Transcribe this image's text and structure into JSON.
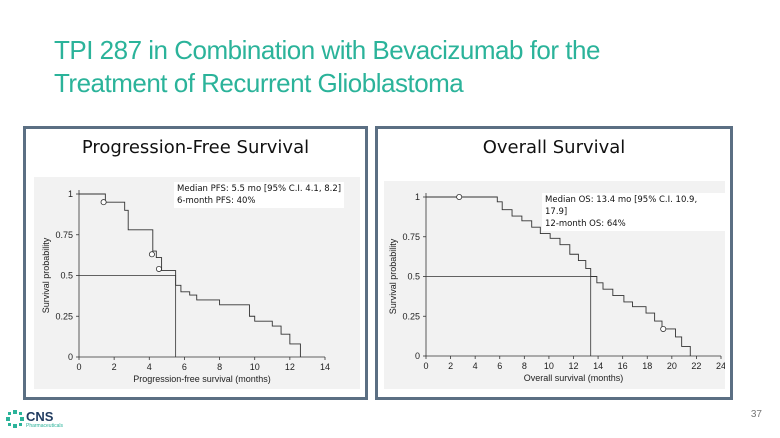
{
  "slide": {
    "title_line1": "TPI 287 in Combination with Bevacizumab for the",
    "title_line2": "Treatment of Recurrent Glioblastoma",
    "page_number": "37",
    "logo_text": "CNS",
    "logo_subtext": "Pharmaceuticals",
    "accent_color": "#2bb39a",
    "border_color": "#5b6f83"
  },
  "chart_data": [
    {
      "type": "line",
      "panel_title": "Progression-Free Survival",
      "xlabel": "Progression-free survival (months)",
      "ylabel": "Survival probability",
      "xlim": [
        0,
        14
      ],
      "ylim": [
        0,
        1
      ],
      "xticks": [
        "0",
        "2",
        "4",
        "6",
        "8",
        "10",
        "12",
        "14"
      ],
      "yticks": [
        "0",
        "0.25",
        "0.5",
        "0.75",
        "1"
      ],
      "annotation_lines": [
        "Median PFS: 5.5 mo [95% C.I. 4.1, 8.2]",
        "6-month PFS: 40%"
      ],
      "series": [
        {
          "step": true,
          "points": [
            [
              0,
              1
            ],
            [
              1.5,
              1
            ],
            [
              1.5,
              0.95
            ],
            [
              2.6,
              0.95
            ],
            [
              2.6,
              0.9
            ],
            [
              2.8,
              0.9
            ],
            [
              2.8,
              0.78
            ],
            [
              4.2,
              0.78
            ],
            [
              4.2,
              0.65
            ],
            [
              4.4,
              0.65
            ],
            [
              4.4,
              0.61
            ],
            [
              4.7,
              0.61
            ],
            [
              4.7,
              0.53
            ],
            [
              5.5,
              0.53
            ],
            [
              5.5,
              0.44
            ],
            [
              5.8,
              0.44
            ],
            [
              5.8,
              0.4
            ],
            [
              6.3,
              0.4
            ],
            [
              6.3,
              0.38
            ],
            [
              6.7,
              0.38
            ],
            [
              6.7,
              0.35
            ],
            [
              8,
              0.35
            ],
            [
              8,
              0.32
            ],
            [
              9.7,
              0.32
            ],
            [
              9.7,
              0.25
            ],
            [
              10,
              0.25
            ],
            [
              10,
              0.22
            ],
            [
              11,
              0.22
            ],
            [
              11,
              0.19
            ],
            [
              11.5,
              0.19
            ],
            [
              11.5,
              0.14
            ],
            [
              12,
              0.14
            ],
            [
              12,
              0.08
            ],
            [
              12.6,
              0.08
            ],
            [
              12.6,
              0
            ]
          ],
          "censored": [
            [
              1.4,
              0.95
            ],
            [
              4.15,
              0.63
            ],
            [
              4.55,
              0.54
            ]
          ]
        }
      ],
      "median_x": 5.5
    },
    {
      "type": "line",
      "panel_title": "Overall Survival",
      "xlabel": "Overall survival (months)",
      "ylabel": "Survival probability",
      "xlim": [
        0,
        24
      ],
      "ylim": [
        0,
        1
      ],
      "xticks": [
        "0",
        "2",
        "4",
        "6",
        "8",
        "10",
        "12",
        "14",
        "16",
        "18",
        "20",
        "22",
        "24"
      ],
      "yticks": [
        "0",
        "0.25",
        "0.5",
        "0.75",
        "1"
      ],
      "annotation_lines": [
        "Median OS: 13.4 mo [95% C.I. 10.9, 17.9]",
        "12-month OS: 64%"
      ],
      "series": [
        {
          "step": true,
          "points": [
            [
              0,
              1
            ],
            [
              5.8,
              1
            ],
            [
              5.8,
              0.97
            ],
            [
              6.2,
              0.97
            ],
            [
              6.2,
              0.92
            ],
            [
              7,
              0.92
            ],
            [
              7,
              0.88
            ],
            [
              7.8,
              0.88
            ],
            [
              7.8,
              0.85
            ],
            [
              8.6,
              0.85
            ],
            [
              8.6,
              0.81
            ],
            [
              9.3,
              0.81
            ],
            [
              9.3,
              0.77
            ],
            [
              10.1,
              0.77
            ],
            [
              10.1,
              0.74
            ],
            [
              10.9,
              0.74
            ],
            [
              10.9,
              0.7
            ],
            [
              11.7,
              0.7
            ],
            [
              11.7,
              0.64
            ],
            [
              12.4,
              0.64
            ],
            [
              12.4,
              0.6
            ],
            [
              13,
              0.6
            ],
            [
              13,
              0.55
            ],
            [
              13.4,
              0.55
            ],
            [
              13.4,
              0.5
            ],
            [
              13.9,
              0.5
            ],
            [
              13.9,
              0.46
            ],
            [
              14.4,
              0.46
            ],
            [
              14.4,
              0.42
            ],
            [
              15.2,
              0.42
            ],
            [
              15.2,
              0.38
            ],
            [
              16.1,
              0.38
            ],
            [
              16.1,
              0.34
            ],
            [
              16.8,
              0.34
            ],
            [
              16.8,
              0.31
            ],
            [
              17.9,
              0.31
            ],
            [
              17.9,
              0.27
            ],
            [
              18.6,
              0.27
            ],
            [
              18.6,
              0.22
            ],
            [
              19.2,
              0.22
            ],
            [
              19.2,
              0.17
            ],
            [
              20.3,
              0.17
            ],
            [
              20.3,
              0.12
            ],
            [
              20.8,
              0.12
            ],
            [
              20.8,
              0.06
            ],
            [
              21.5,
              0.06
            ],
            [
              21.5,
              0
            ]
          ],
          "censored": [
            [
              2.7,
              1
            ],
            [
              19.3,
              0.17
            ]
          ]
        }
      ],
      "median_x": 13.4
    }
  ]
}
